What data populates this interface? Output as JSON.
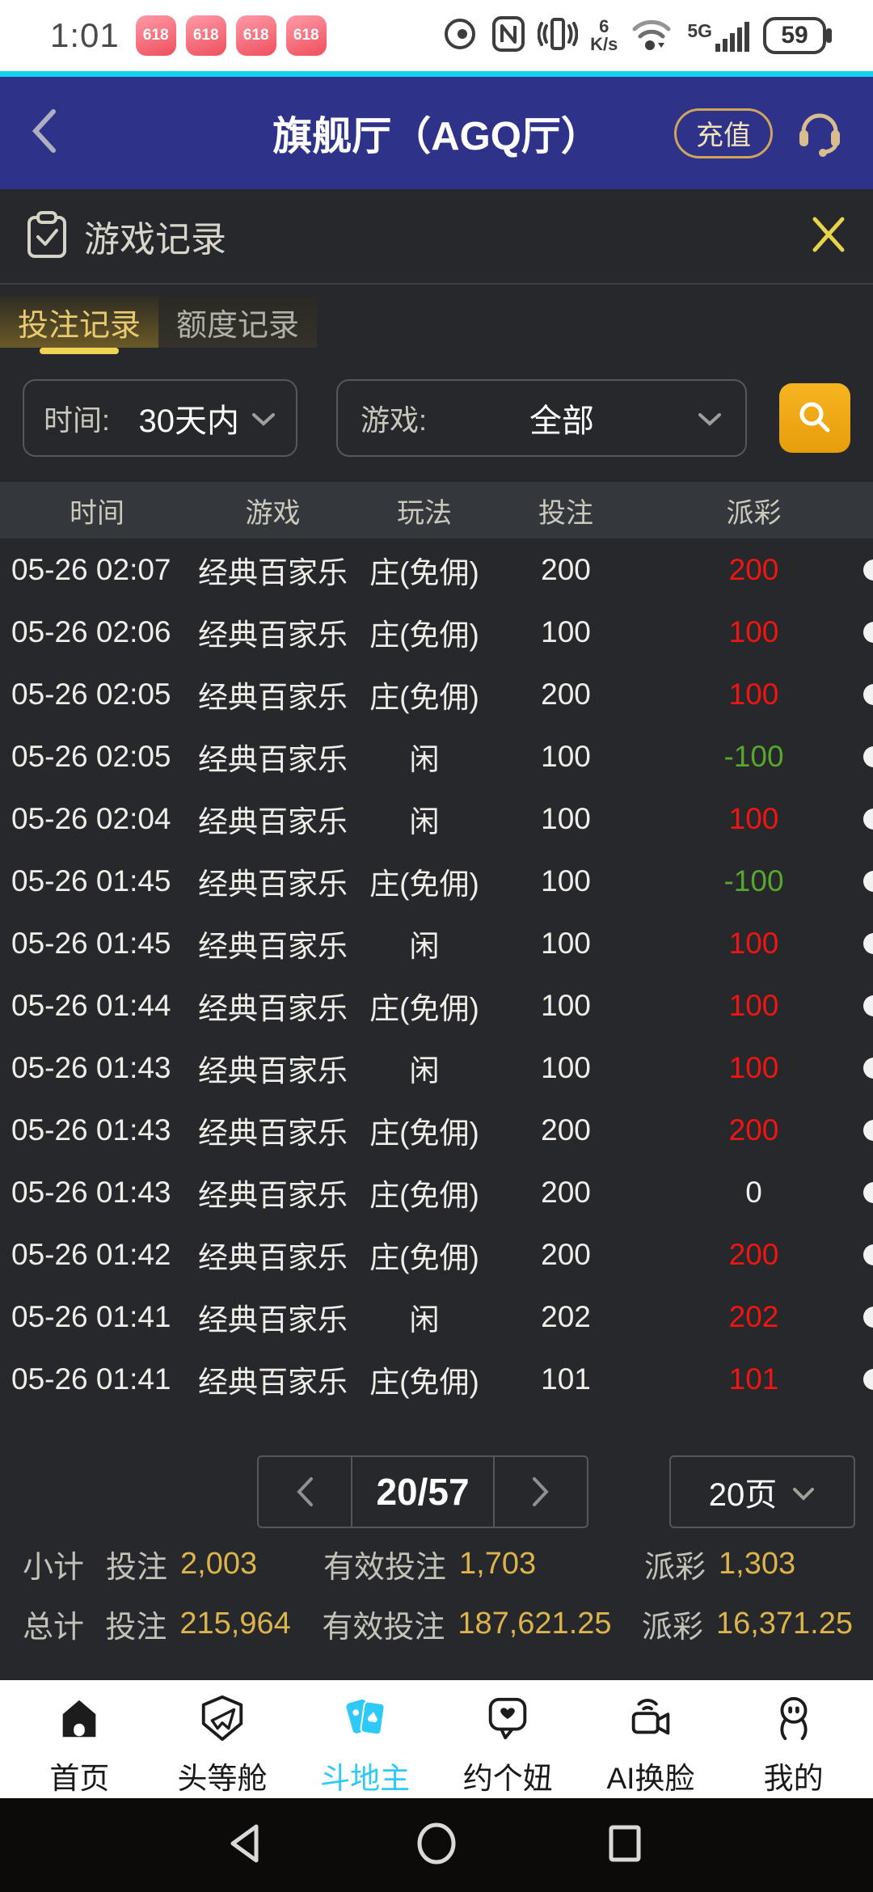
{
  "status_bar": {
    "time": "1:01",
    "notif_badge": "618",
    "notif_count": 4,
    "net_speed_value": "6",
    "net_speed_unit": "K/s",
    "net_type": "5G",
    "battery": "59"
  },
  "app_header": {
    "title": "旗舰厅（AGQ厅）",
    "recharge_label": "充值"
  },
  "record_panel": {
    "title": "游戏记录",
    "tabs": [
      {
        "label": "投注记录",
        "active": true
      },
      {
        "label": "额度记录",
        "active": false
      }
    ],
    "filters": {
      "time_label": "时间:",
      "time_value": "30天内",
      "game_label": "游戏:",
      "game_value": "全部"
    },
    "table": {
      "headers": [
        "时间",
        "游戏",
        "玩法",
        "投注",
        "派彩"
      ],
      "rows": [
        {
          "time": "05-26 02:07",
          "game": "经典百家乐",
          "play": "庄(免佣)",
          "bet": "200",
          "payout": "200",
          "payout_color": "red"
        },
        {
          "time": "05-26 02:06",
          "game": "经典百家乐",
          "play": "庄(免佣)",
          "bet": "100",
          "payout": "100",
          "payout_color": "red"
        },
        {
          "time": "05-26 02:05",
          "game": "经典百家乐",
          "play": "庄(免佣)",
          "bet": "200",
          "payout": "100",
          "payout_color": "red"
        },
        {
          "time": "05-26 02:05",
          "game": "经典百家乐",
          "play": "闲",
          "bet": "100",
          "payout": "-100",
          "payout_color": "green"
        },
        {
          "time": "05-26 02:04",
          "game": "经典百家乐",
          "play": "闲",
          "bet": "100",
          "payout": "100",
          "payout_color": "red"
        },
        {
          "time": "05-26 01:45",
          "game": "经典百家乐",
          "play": "庄(免佣)",
          "bet": "100",
          "payout": "-100",
          "payout_color": "green"
        },
        {
          "time": "05-26 01:45",
          "game": "经典百家乐",
          "play": "闲",
          "bet": "100",
          "payout": "100",
          "payout_color": "red"
        },
        {
          "time": "05-26 01:44",
          "game": "经典百家乐",
          "play": "庄(免佣)",
          "bet": "100",
          "payout": "100",
          "payout_color": "red"
        },
        {
          "time": "05-26 01:43",
          "game": "经典百家乐",
          "play": "闲",
          "bet": "100",
          "payout": "100",
          "payout_color": "red"
        },
        {
          "time": "05-26 01:43",
          "game": "经典百家乐",
          "play": "庄(免佣)",
          "bet": "200",
          "payout": "200",
          "payout_color": "red"
        },
        {
          "time": "05-26 01:43",
          "game": "经典百家乐",
          "play": "庄(免佣)",
          "bet": "200",
          "payout": "0",
          "payout_color": "zero"
        },
        {
          "time": "05-26 01:42",
          "game": "经典百家乐",
          "play": "庄(免佣)",
          "bet": "200",
          "payout": "200",
          "payout_color": "red"
        },
        {
          "time": "05-26 01:41",
          "game": "经典百家乐",
          "play": "闲",
          "bet": "202",
          "payout": "202",
          "payout_color": "red"
        },
        {
          "time": "05-26 01:41",
          "game": "经典百家乐",
          "play": "庄(免佣)",
          "bet": "101",
          "payout": "101",
          "payout_color": "red"
        }
      ]
    },
    "pagination": {
      "current_page": "20/57",
      "page_size": "20页"
    },
    "subtotal": {
      "label": "小计",
      "bet_label": "投注",
      "bet": "2,003",
      "valid_label": "有效投注",
      "valid": "1,703",
      "payout_label": "派彩",
      "payout": "1,303"
    },
    "total": {
      "label": "总计",
      "bet_label": "投注",
      "bet": "215,964",
      "valid_label": "有效投注",
      "valid": "187,621.25",
      "payout_label": "派彩",
      "payout": "16,371.25"
    }
  },
  "bottom_nav": {
    "items": [
      {
        "label": "首页",
        "active": false
      },
      {
        "label": "头等舱",
        "active": false
      },
      {
        "label": "斗地主",
        "active": true
      },
      {
        "label": "约个妞",
        "active": false
      },
      {
        "label": "AI换脸",
        "active": false
      },
      {
        "label": "我的",
        "active": false
      }
    ]
  },
  "colors": {
    "accent_cyan": "#12d2ee",
    "header_navy": "#2e3389",
    "panel_bg": "#26282b",
    "gold_text": "#eaca70",
    "gold_value": "#ddb34c",
    "win_red": "#ee1512",
    "lose_green": "#57a62e",
    "nav_active_cyan": "#2fc9f7",
    "search_orange": "#f0a816"
  }
}
